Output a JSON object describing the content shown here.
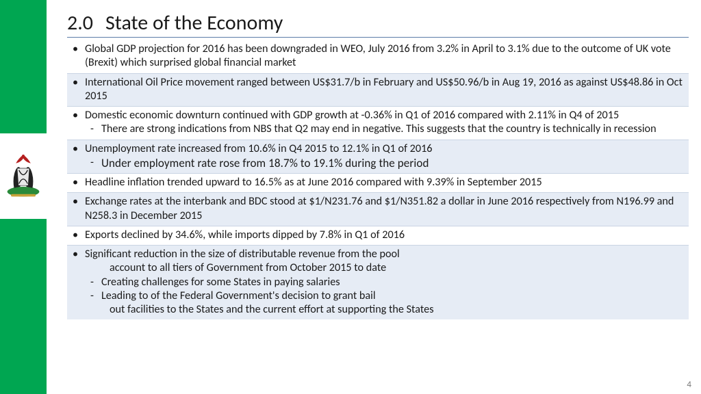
{
  "title": {
    "number": "2.0",
    "text": "State of the Economy"
  },
  "colors": {
    "accent_green": "#00a651",
    "rule": "#5b7ba7",
    "shade": "#e6ecf5"
  },
  "bullets": [
    {
      "text": "Global GDP projection for 2016 has been downgraded in WEO, July 2016 from 3.2% in April to 3.1% due to the outcome of UK vote (Brexit) which surprised global financial market",
      "shaded": false
    },
    {
      "text": "International Oil Price movement ranged between US$31.7/b in February and US$50.96/b in Aug 19, 2016 as against US$48.86 in Oct 2015",
      "shaded": true
    },
    {
      "text": "Domestic economic downturn continued with GDP growth at -0.36% in Q1 of 2016 compared with 2.11% in Q4 of 2015",
      "shaded": false,
      "subs": [
        {
          "text": "There are strong indications from NBS that Q2 may end in negative.  This suggests that the country is technically in recession"
        }
      ]
    },
    {
      "text": "Unemployment rate increased from 10.6% in Q4 2015 to 12.1% in Q1 of 2016",
      "shaded": true,
      "subs": [
        {
          "text": "Under employment rate rose from 18.7% to 19.1% during the period",
          "special": true
        }
      ]
    },
    {
      "text": "Headline inflation trended upward to 16.5% as at June 2016 compared with 9.39% in September 2015",
      "shaded": false
    },
    {
      "text": "Exchange rates at the interbank and BDC stood at $1/N231.76 and $1/N351.82 a dollar in June 2016 respectively from N196.99 and N258.3 in December 2015",
      "shaded": true
    },
    {
      "text": "Exports declined by 34.6%, while imports dipped by 7.8% in Q1 of 2016",
      "shaded": false
    },
    {
      "text": "Significant reduction  in the size of distributable revenue from the pool",
      "shaded": true,
      "cont": "account to all tiers of Government from October 2015 to date",
      "subs": [
        {
          "text": "Creating challenges for some States in paying salaries"
        },
        {
          "text": "Leading to of the Federal Government's decision to grant bail"
        }
      ],
      "cont2": "out facilities to the States and the current effort at supporting the States",
      "last": true
    }
  ],
  "page_number": "4"
}
